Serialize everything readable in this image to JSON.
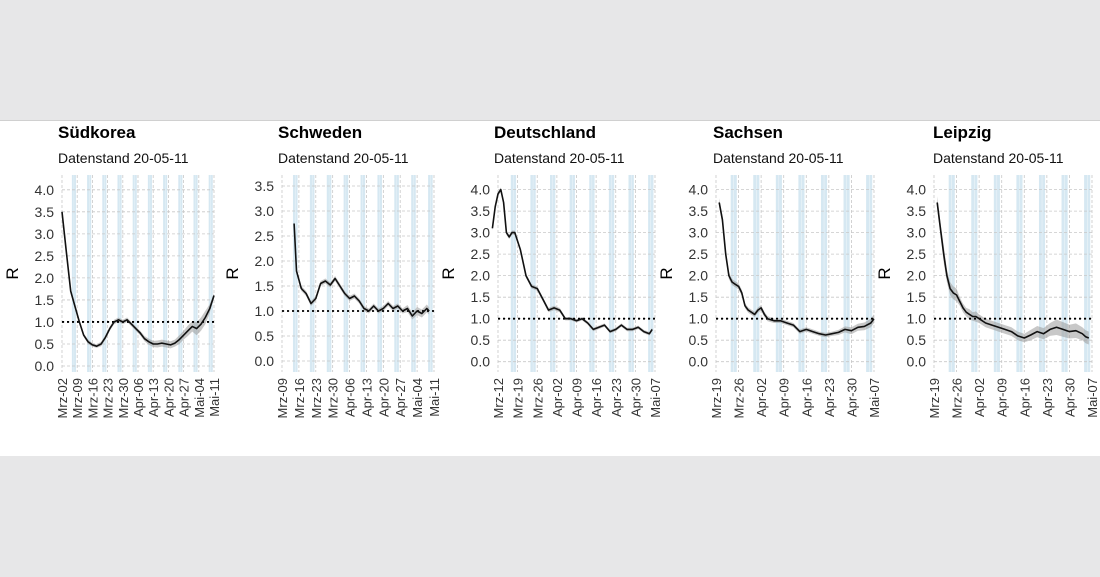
{
  "chart_data": [
    {
      "type": "line",
      "title": "Südkorea",
      "subtitle": "Datenstand 20-05-11",
      "ylabel": "R",
      "ylim": [
        0,
        4.2
      ],
      "yticks": [
        "0.0",
        "0.5",
        "1.0",
        "1.5",
        "2.0",
        "2.5",
        "3.0",
        "3.5",
        "4.0"
      ],
      "xlim": [
        0,
        70
      ],
      "xticks": [
        {
          "label": "Mrz-02",
          "x": 0
        },
        {
          "label": "Mrz-09",
          "x": 7
        },
        {
          "label": "Mrz-16",
          "x": 14
        },
        {
          "label": "Mrz-23",
          "x": 21
        },
        {
          "label": "Mrz-30",
          "x": 28
        },
        {
          "label": "Apr-06",
          "x": 35
        },
        {
          "label": "Apr-13",
          "x": 42
        },
        {
          "label": "Apr-20",
          "x": 49
        },
        {
          "label": "Apr-27",
          "x": 56
        },
        {
          "label": "Mai-04",
          "x": 63
        },
        {
          "label": "Mai-11",
          "x": 70
        }
      ],
      "reference_line": 1.0,
      "weekend_bands": true,
      "x": [
        0,
        2,
        4,
        6,
        8,
        10,
        12,
        14,
        16,
        18,
        20,
        22,
        24,
        26,
        28,
        30,
        32,
        34,
        36,
        38,
        40,
        42,
        44,
        46,
        48,
        50,
        52,
        54,
        56,
        58,
        60,
        62,
        64,
        66,
        68,
        70
      ],
      "values": [
        3.5,
        2.6,
        1.7,
        1.35,
        1.0,
        0.7,
        0.55,
        0.48,
        0.45,
        0.5,
        0.65,
        0.85,
        1.0,
        1.05,
        1.0,
        1.05,
        0.95,
        0.85,
        0.75,
        0.62,
        0.55,
        0.5,
        0.5,
        0.52,
        0.5,
        0.48,
        0.52,
        0.6,
        0.7,
        0.8,
        0.9,
        0.85,
        0.95,
        1.1,
        1.3,
        1.6
      ],
      "band_lower": [
        3.45,
        2.55,
        1.65,
        1.3,
        0.95,
        0.66,
        0.5,
        0.44,
        0.41,
        0.45,
        0.6,
        0.8,
        0.95,
        1.0,
        0.95,
        1.0,
        0.9,
        0.8,
        0.7,
        0.56,
        0.48,
        0.43,
        0.42,
        0.44,
        0.42,
        0.4,
        0.44,
        0.5,
        0.6,
        0.68,
        0.78,
        0.7,
        0.8,
        0.95,
        1.2,
        1.55
      ],
      "band_upper": [
        3.55,
        2.65,
        1.75,
        1.4,
        1.05,
        0.74,
        0.6,
        0.52,
        0.49,
        0.55,
        0.7,
        0.9,
        1.05,
        1.1,
        1.05,
        1.1,
        1.0,
        0.9,
        0.8,
        0.68,
        0.62,
        0.57,
        0.58,
        0.6,
        0.58,
        0.56,
        0.6,
        0.7,
        0.8,
        0.92,
        1.02,
        1.0,
        1.1,
        1.25,
        1.4,
        1.65
      ]
    },
    {
      "type": "line",
      "title": "Schweden",
      "subtitle": "Datenstand 20-05-11",
      "ylabel": "R",
      "ylim": [
        -0.1,
        3.6
      ],
      "yticks": [
        "0.0",
        "0.5",
        "1.0",
        "1.5",
        "2.0",
        "2.5",
        "3.0",
        "3.5"
      ],
      "xlim": [
        0,
        63
      ],
      "xticks": [
        {
          "label": "Mrz-09",
          "x": 0
        },
        {
          "label": "Mrz-16",
          "x": 7
        },
        {
          "label": "Mrz-23",
          "x": 14
        },
        {
          "label": "Mrz-30",
          "x": 21
        },
        {
          "label": "Apr-06",
          "x": 28
        },
        {
          "label": "Apr-13",
          "x": 35
        },
        {
          "label": "Apr-20",
          "x": 42
        },
        {
          "label": "Apr-27",
          "x": 49
        },
        {
          "label": "Mai-04",
          "x": 56
        },
        {
          "label": "Mai-11",
          "x": 63
        }
      ],
      "reference_line": 1.0,
      "weekend_bands": true,
      "x": [
        5,
        6,
        8,
        10,
        12,
        14,
        16,
        18,
        20,
        22,
        24,
        26,
        28,
        30,
        32,
        34,
        36,
        38,
        40,
        42,
        44,
        46,
        48,
        50,
        52,
        54,
        56,
        58,
        60,
        61
      ],
      "values": [
        2.75,
        1.8,
        1.45,
        1.35,
        1.15,
        1.25,
        1.55,
        1.6,
        1.52,
        1.65,
        1.5,
        1.35,
        1.25,
        1.3,
        1.2,
        1.05,
        1.0,
        1.1,
        1.0,
        1.05,
        1.15,
        1.05,
        1.1,
        1.0,
        1.05,
        0.9,
        1.0,
        0.95,
        1.05,
        1.0
      ],
      "band_lower": [
        2.7,
        1.75,
        1.4,
        1.3,
        1.1,
        1.2,
        1.5,
        1.55,
        1.47,
        1.6,
        1.45,
        1.3,
        1.2,
        1.25,
        1.15,
        1.0,
        0.95,
        1.05,
        0.95,
        1.0,
        1.1,
        1.0,
        1.05,
        0.95,
        0.98,
        0.83,
        0.92,
        0.87,
        0.97,
        0.93
      ],
      "band_upper": [
        2.8,
        1.85,
        1.5,
        1.4,
        1.2,
        1.3,
        1.6,
        1.65,
        1.57,
        1.7,
        1.55,
        1.4,
        1.3,
        1.35,
        1.25,
        1.1,
        1.05,
        1.15,
        1.05,
        1.1,
        1.2,
        1.1,
        1.15,
        1.05,
        1.12,
        0.97,
        1.08,
        1.03,
        1.13,
        1.07
      ]
    },
    {
      "type": "line",
      "title": "Deutschland",
      "subtitle": "Datenstand 20-05-11",
      "ylabel": "R",
      "ylim": [
        -0.1,
        4.2
      ],
      "yticks": [
        "0.0",
        "0.5",
        "1.0",
        "1.5",
        "2.0",
        "2.5",
        "3.0",
        "3.5",
        "4.0"
      ],
      "xlim": [
        0,
        56
      ],
      "xticks": [
        {
          "label": "Mrz-12",
          "x": 0
        },
        {
          "label": "Mrz-19",
          "x": 7
        },
        {
          "label": "Mrz-26",
          "x": 14
        },
        {
          "label": "Apr-02",
          "x": 21
        },
        {
          "label": "Apr-09",
          "x": 28
        },
        {
          "label": "Apr-16",
          "x": 35
        },
        {
          "label": "Apr-23",
          "x": 42
        },
        {
          "label": "Apr-30",
          "x": 49
        },
        {
          "label": "Mai-07",
          "x": 56
        }
      ],
      "reference_line": 1.0,
      "weekend_bands": true,
      "x": [
        -2,
        -1,
        0,
        1,
        2,
        3,
        4,
        5,
        6,
        8,
        10,
        12,
        14,
        16,
        18,
        20,
        22,
        24,
        26,
        28,
        30,
        32,
        34,
        36,
        38,
        40,
        42,
        44,
        46,
        48,
        50,
        52,
        54,
        55
      ],
      "values": [
        3.1,
        3.6,
        3.9,
        4.0,
        3.7,
        3.0,
        2.9,
        3.0,
        3.0,
        2.6,
        2.0,
        1.75,
        1.7,
        1.45,
        1.2,
        1.25,
        1.2,
        1.0,
        1.0,
        0.95,
        1.0,
        0.9,
        0.75,
        0.8,
        0.85,
        0.7,
        0.75,
        0.85,
        0.75,
        0.75,
        0.8,
        0.7,
        0.65,
        0.75
      ],
      "band_lower": [
        3.05,
        3.55,
        3.85,
        3.95,
        3.65,
        2.95,
        2.85,
        2.95,
        2.95,
        2.55,
        1.95,
        1.7,
        1.65,
        1.4,
        1.15,
        1.2,
        1.15,
        0.96,
        0.96,
        0.91,
        0.96,
        0.86,
        0.71,
        0.76,
        0.81,
        0.66,
        0.71,
        0.81,
        0.71,
        0.71,
        0.76,
        0.66,
        0.61,
        0.71
      ],
      "band_upper": [
        3.15,
        3.65,
        3.95,
        4.05,
        3.75,
        3.05,
        2.95,
        3.05,
        3.05,
        2.65,
        2.05,
        1.8,
        1.75,
        1.5,
        1.25,
        1.3,
        1.25,
        1.04,
        1.04,
        0.99,
        1.04,
        0.94,
        0.79,
        0.84,
        0.89,
        0.74,
        0.79,
        0.89,
        0.79,
        0.79,
        0.84,
        0.74,
        0.69,
        0.79
      ]
    },
    {
      "type": "line",
      "title": "Sachsen",
      "subtitle": "Datenstand 20-05-11",
      "ylabel": "R",
      "ylim": [
        -0.1,
        4.2
      ],
      "yticks": [
        "0.0",
        "0.5",
        "1.0",
        "1.5",
        "2.0",
        "2.5",
        "3.0",
        "3.5",
        "4.0"
      ],
      "xlim": [
        0,
        49
      ],
      "xticks": [
        {
          "label": "Mrz-19",
          "x": 0
        },
        {
          "label": "Mrz-26",
          "x": 7
        },
        {
          "label": "Apr-02",
          "x": 14
        },
        {
          "label": "Apr-09",
          "x": 21
        },
        {
          "label": "Apr-16",
          "x": 28
        },
        {
          "label": "Apr-23",
          "x": 35
        },
        {
          "label": "Apr-30",
          "x": 42
        },
        {
          "label": "Mai-07",
          "x": 49
        }
      ],
      "reference_line": 1.0,
      "weekend_bands": true,
      "x": [
        1,
        2,
        3,
        4,
        5,
        6,
        7,
        8,
        9,
        10,
        12,
        13,
        14,
        15,
        16,
        18,
        20,
        22,
        24,
        26,
        28,
        30,
        32,
        34,
        36,
        38,
        40,
        42,
        44,
        46,
        48,
        49
      ],
      "values": [
        3.7,
        3.3,
        2.5,
        2.0,
        1.85,
        1.8,
        1.75,
        1.6,
        1.3,
        1.2,
        1.1,
        1.2,
        1.25,
        1.1,
        1.0,
        0.95,
        0.95,
        0.9,
        0.85,
        0.7,
        0.75,
        0.7,
        0.65,
        0.62,
        0.65,
        0.68,
        0.75,
        0.72,
        0.8,
        0.82,
        0.9,
        1.0
      ],
      "band_lower": [
        3.6,
        3.2,
        2.4,
        1.92,
        1.78,
        1.73,
        1.68,
        1.53,
        1.24,
        1.14,
        1.04,
        1.14,
        1.19,
        1.04,
        0.94,
        0.9,
        0.9,
        0.85,
        0.8,
        0.65,
        0.7,
        0.65,
        0.6,
        0.57,
        0.6,
        0.62,
        0.68,
        0.64,
        0.72,
        0.73,
        0.8,
        0.9
      ],
      "band_upper": [
        3.8,
        3.4,
        2.6,
        2.08,
        1.92,
        1.87,
        1.82,
        1.67,
        1.36,
        1.26,
        1.16,
        1.26,
        1.31,
        1.16,
        1.06,
        1.0,
        1.0,
        0.95,
        0.9,
        0.75,
        0.8,
        0.75,
        0.7,
        0.67,
        0.7,
        0.74,
        0.82,
        0.8,
        0.88,
        0.91,
        1.0,
        1.1
      ]
    },
    {
      "type": "line",
      "title": "Leipzig",
      "subtitle": "Datenstand 20-05-11",
      "ylabel": "R",
      "ylim": [
        -0.1,
        4.2
      ],
      "yticks": [
        "0.0",
        "0.5",
        "1.0",
        "1.5",
        "2.0",
        "2.5",
        "3.0",
        "3.5",
        "4.0"
      ],
      "xlim": [
        0,
        49
      ],
      "xticks": [
        {
          "label": "Mrz-19",
          "x": 0
        },
        {
          "label": "Mrz-26",
          "x": 7
        },
        {
          "label": "Apr-02",
          "x": 14
        },
        {
          "label": "Apr-09",
          "x": 21
        },
        {
          "label": "Apr-16",
          "x": 28
        },
        {
          "label": "Apr-23",
          "x": 35
        },
        {
          "label": "Apr-30",
          "x": 42
        },
        {
          "label": "Mai-07",
          "x": 49
        }
      ],
      "reference_line": 1.0,
      "weekend_bands": true,
      "x": [
        1,
        2,
        3,
        4,
        5,
        6,
        7,
        8,
        9,
        10,
        11,
        12,
        13,
        14,
        16,
        18,
        20,
        22,
        24,
        26,
        28,
        30,
        32,
        34,
        36,
        38,
        40,
        42,
        44,
        46,
        47,
        48
      ],
      "values": [
        3.7,
        3.1,
        2.5,
        2.0,
        1.7,
        1.6,
        1.55,
        1.4,
        1.25,
        1.15,
        1.1,
        1.05,
        1.05,
        1.0,
        0.9,
        0.85,
        0.8,
        0.75,
        0.7,
        0.6,
        0.55,
        0.62,
        0.7,
        0.65,
        0.75,
        0.8,
        0.75,
        0.7,
        0.72,
        0.65,
        0.58,
        0.55
      ],
      "band_lower": [
        3.55,
        2.95,
        2.3,
        1.85,
        1.55,
        1.45,
        1.4,
        1.3,
        1.15,
        1.05,
        0.98,
        0.95,
        0.93,
        0.9,
        0.8,
        0.75,
        0.7,
        0.65,
        0.6,
        0.5,
        0.45,
        0.5,
        0.57,
        0.52,
        0.6,
        0.62,
        0.58,
        0.54,
        0.55,
        0.5,
        0.43,
        0.4
      ],
      "band_upper": [
        3.85,
        3.25,
        2.7,
        2.15,
        1.85,
        1.75,
        1.7,
        1.5,
        1.35,
        1.25,
        1.22,
        1.15,
        1.17,
        1.1,
        1.0,
        0.95,
        0.9,
        0.85,
        0.8,
        0.7,
        0.65,
        0.74,
        0.83,
        0.78,
        0.9,
        0.98,
        0.92,
        0.86,
        0.89,
        0.8,
        0.73,
        0.7
      ]
    }
  ]
}
